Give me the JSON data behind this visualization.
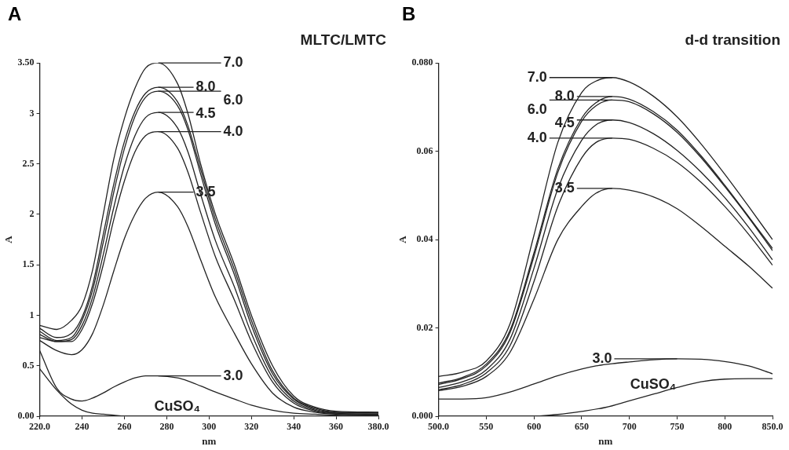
{
  "chart_data": [
    {
      "type": "line",
      "title": "A",
      "subtitle": "MLTC/LMTC",
      "xlabel": "nm",
      "ylabel": "A",
      "x": [
        220,
        228,
        235,
        240,
        245,
        250,
        255,
        260,
        265,
        270,
        276,
        285,
        290,
        296,
        303,
        312,
        320,
        330,
        340,
        350,
        360,
        380
      ],
      "series": [
        {
          "name": "7.0",
          "color": "#222222",
          "values": [
            0.9,
            0.86,
            0.95,
            1.1,
            1.45,
            2.0,
            2.55,
            2.95,
            3.25,
            3.45,
            3.5,
            3.3,
            3.0,
            2.5,
            2.0,
            1.5,
            1.0,
            0.5,
            0.2,
            0.09,
            0.05,
            0.04
          ]
        },
        {
          "name": "8.0",
          "color": "#222222",
          "values": [
            0.87,
            0.78,
            0.82,
            0.98,
            1.3,
            1.8,
            2.3,
            2.72,
            3.02,
            3.2,
            3.26,
            3.12,
            2.88,
            2.45,
            1.95,
            1.45,
            0.95,
            0.45,
            0.18,
            0.08,
            0.04,
            0.035
          ]
        },
        {
          "name": "6.0",
          "color": "#222222",
          "values": [
            0.84,
            0.75,
            0.78,
            0.95,
            1.25,
            1.72,
            2.22,
            2.65,
            2.97,
            3.16,
            3.22,
            3.08,
            2.84,
            2.4,
            1.9,
            1.4,
            0.9,
            0.42,
            0.17,
            0.07,
            0.035,
            0.03
          ]
        },
        {
          "name": "4.5",
          "color": "#222222",
          "values": [
            0.78,
            0.74,
            0.76,
            0.9,
            1.18,
            1.6,
            2.07,
            2.48,
            2.78,
            2.96,
            3.01,
            2.86,
            2.62,
            2.2,
            1.74,
            1.28,
            0.82,
            0.38,
            0.15,
            0.06,
            0.03,
            0.02
          ]
        },
        {
          "name": "4.0",
          "color": "#222222",
          "values": [
            0.81,
            0.74,
            0.74,
            0.86,
            1.12,
            1.5,
            1.95,
            2.33,
            2.62,
            2.78,
            2.82,
            2.66,
            2.42,
            2.02,
            1.58,
            1.15,
            0.74,
            0.34,
            0.13,
            0.05,
            0.025,
            0.015
          ]
        },
        {
          "name": "3.5",
          "color": "#222222",
          "values": [
            0.75,
            0.65,
            0.61,
            0.66,
            0.82,
            1.1,
            1.44,
            1.76,
            2.0,
            2.16,
            2.22,
            2.08,
            1.88,
            1.55,
            1.18,
            0.82,
            0.52,
            0.23,
            0.09,
            0.04,
            0.02,
            0.01
          ]
        },
        {
          "name": "3.0",
          "color": "#222222",
          "values": [
            0.65,
            0.28,
            0.17,
            0.15,
            0.18,
            0.23,
            0.29,
            0.34,
            0.38,
            0.4,
            0.4,
            0.38,
            0.35,
            0.3,
            0.24,
            0.17,
            0.11,
            0.06,
            0.03,
            0.02,
            0.01,
            0.005
          ]
        },
        {
          "name": "CuSO₄",
          "color": "#222222",
          "values": [
            0.47,
            0.26,
            0.12,
            0.06,
            0.03,
            0.02,
            0.01,
            0,
            0,
            0,
            0,
            0,
            0,
            0,
            0,
            0,
            0,
            0,
            0,
            0,
            0,
            0
          ]
        }
      ],
      "xlim": [
        220,
        380
      ],
      "xticks": [
        {
          "value": 220,
          "label": "220.0"
        },
        240,
        260,
        280,
        300,
        320,
        340,
        360,
        {
          "value": 380,
          "label": "380.0"
        }
      ],
      "ylim": [
        0,
        3.5
      ],
      "yticks": [
        {
          "value": 0,
          "label": "0.00"
        },
        0.5,
        1.0,
        1.5,
        2.0,
        2.5,
        3.0,
        {
          "value": 3.5,
          "label": "3.50"
        }
      ],
      "grid": false,
      "legend": "top",
      "marker": "none",
      "line_style": "solid"
    },
    {
      "type": "line",
      "title": "B",
      "subtitle": "d-d transition",
      "xlabel": "nm",
      "ylabel": "A",
      "x": [
        500,
        525,
        550,
        575,
        600,
        625,
        650,
        665,
        682,
        700,
        725,
        750,
        775,
        800,
        825,
        850
      ],
      "series": [
        {
          "name": "7.0",
          "color": "#222222",
          "values": [
            0.009,
            0.01,
            0.0125,
            0.021,
            0.041,
            0.062,
            0.0733,
            0.0759,
            0.0767,
            0.0757,
            0.0725,
            0.0678,
            0.0617,
            0.0548,
            0.0475,
            0.04
          ]
        },
        {
          "name": "8.0",
          "color": "#222222",
          "values": [
            0.0075,
            0.0088,
            0.0118,
            0.0195,
            0.037,
            0.056,
            0.0675,
            0.071,
            0.0724,
            0.0718,
            0.069,
            0.0648,
            0.059,
            0.0523,
            0.0452,
            0.038
          ]
        },
        {
          "name": "6.0",
          "color": "#222222",
          "values": [
            0.0072,
            0.0085,
            0.0114,
            0.019,
            0.0362,
            0.0552,
            0.0668,
            0.0703,
            0.0716,
            0.0712,
            0.0685,
            0.0643,
            0.0586,
            0.052,
            0.045,
            0.0375
          ]
        },
        {
          "name": "4.5",
          "color": "#222222",
          "values": [
            0.0065,
            0.0078,
            0.0105,
            0.0175,
            0.0335,
            0.0515,
            0.0625,
            0.066,
            0.0671,
            0.0665,
            0.064,
            0.0602,
            0.0553,
            0.0495,
            0.0428,
            0.0354
          ]
        },
        {
          "name": "4.0",
          "color": "#222222",
          "values": [
            0.006,
            0.0072,
            0.0098,
            0.016,
            0.0305,
            0.0475,
            0.0585,
            0.062,
            0.063,
            0.0627,
            0.0607,
            0.0575,
            0.053,
            0.0475,
            0.0412,
            0.0342
          ]
        },
        {
          "name": "3.5",
          "color": "#222222",
          "values": [
            0.0058,
            0.0068,
            0.009,
            0.0145,
            0.0265,
            0.04,
            0.0475,
            0.0505,
            0.0516,
            0.0512,
            0.0497,
            0.047,
            0.043,
            0.0385,
            0.034,
            0.029
          ]
        },
        {
          "name": "3.0",
          "color": "#222222",
          "values": [
            0.0039,
            0.0039,
            0.0042,
            0.0055,
            0.0073,
            0.0092,
            0.0107,
            0.0114,
            0.0119,
            0.0123,
            0.0128,
            0.013,
            0.0129,
            0.0124,
            0.0114,
            0.0096
          ]
        },
        {
          "name": "CuSO₄",
          "color": "#222222",
          "x": [
            600,
            625,
            650,
            675,
            700,
            725,
            750,
            775,
            800,
            825,
            850
          ],
          "values": [
            0,
            0.0004,
            0.0011,
            0.002,
            0.0035,
            0.005,
            0.0065,
            0.0078,
            0.0084,
            0.0085,
            0.0085
          ]
        }
      ],
      "xlim": [
        500,
        850
      ],
      "xticks": [
        {
          "value": 500,
          "label": "500.0"
        },
        550,
        600,
        650,
        700,
        750,
        800,
        {
          "value": 850,
          "label": "850.0"
        }
      ],
      "ylim": [
        0,
        0.08
      ],
      "yticks": [
        {
          "value": 0,
          "label": "0.000"
        },
        0.02,
        0.04,
        0.06,
        {
          "value": 0.08,
          "label": "0.080"
        }
      ],
      "grid": false,
      "legend": "top",
      "marker": "none",
      "line_style": "solid"
    }
  ]
}
